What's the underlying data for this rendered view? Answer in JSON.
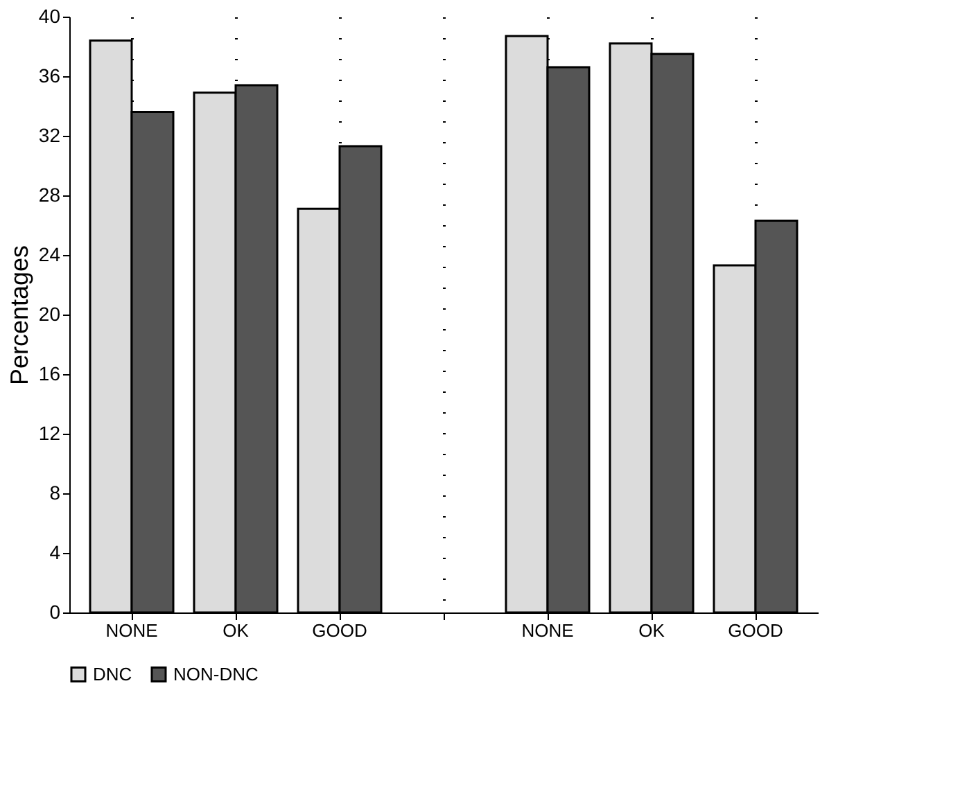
{
  "chart_data": {
    "type": "bar",
    "ylabel": "Percentages",
    "categories": [
      "NONE",
      "OK",
      "GOOD",
      null,
      "NONE",
      "OK",
      "GOOD"
    ],
    "series": [
      {
        "name": "DNC",
        "color": "#dcdcdc",
        "values": [
          38.4,
          34.9,
          27.1,
          null,
          38.7,
          38.2,
          23.3
        ]
      },
      {
        "name": "NON-DNC",
        "color": "#555555",
        "values": [
          33.6,
          35.4,
          31.3,
          null,
          36.6,
          37.5,
          26.3
        ]
      }
    ],
    "ylim": [
      0,
      40
    ],
    "yticks": [
      0,
      4,
      8,
      12,
      16,
      20,
      24,
      28,
      32,
      36,
      40
    ],
    "grid": "x",
    "legend": "bottom left"
  }
}
